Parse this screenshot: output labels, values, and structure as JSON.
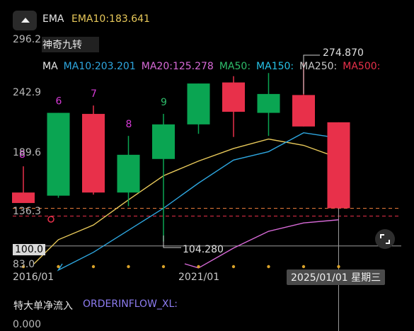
{
  "header": {
    "collapse_icon": "chevron-up-icon",
    "ema_label": "EMA",
    "ema10_text": "EMA10:183.641"
  },
  "colors": {
    "up": "#0aa552",
    "down": "#e8304a",
    "ema10": "#e8c95a",
    "ma10": "#2ea7e0",
    "ma20": "#d86ad8",
    "ma50": "#2ebd6b",
    "ma150": "#27c2e6",
    "ma250": "#c8c8c8",
    "ma500": "#e8304a",
    "td_up": "#d63ad6",
    "td_down": "#2ebd6b",
    "orderflow": "#8d7cf0",
    "ref_line": "#e87a3a"
  },
  "indicator_panel": {
    "nine_turn_label": "神奇九转",
    "ma_row": [
      {
        "text": "MA",
        "color": "#e6e6e6"
      },
      {
        "text": "MA10:203.201",
        "color": "#2ea7e0"
      },
      {
        "text": "MA20:125.278",
        "color": "#d86ad8"
      },
      {
        "text": "MA50:",
        "color": "#2ebd6b"
      },
      {
        "text": "MA150:",
        "color": "#27c2e6"
      },
      {
        "text": "MA250:",
        "color": "#c8c8c8"
      },
      {
        "text": "MA500:",
        "color": "#e8304a"
      }
    ]
  },
  "y_axis": {
    "labels": [
      "296.2",
      "242.9",
      "189.6",
      "136.3",
      "83.0"
    ],
    "current_price_tag": "100.0",
    "low_label": "104.280",
    "high_label": "274.870"
  },
  "x_axis": {
    "labels": [
      "2016/01",
      "2021/01"
    ],
    "crosshair_date": "2025/01/01 星期三"
  },
  "chart_data": {
    "type": "candlestick",
    "yrange": [
      83.0,
      296.2
    ],
    "candles": [
      {
        "open": 151,
        "close": 141,
        "high": 176,
        "low": 141,
        "td": "8",
        "td_color": "#d63ad6"
      },
      {
        "open": 148,
        "close": 227,
        "high": 227,
        "low": 146,
        "td": "6",
        "td_color": "#d63ad6"
      },
      {
        "open": 226,
        "close": 151,
        "high": 234,
        "low": 149,
        "td": "7",
        "td_color": "#d63ad6"
      },
      {
        "open": 151,
        "close": 187,
        "high": 205,
        "low": 138,
        "td": "8",
        "td_color": "#d63ad6"
      },
      {
        "open": 183,
        "close": 216,
        "high": 226,
        "low": 104.28,
        "td": "9",
        "td_color": "#2ebd6b"
      },
      {
        "open": 216,
        "close": 255,
        "high": 255,
        "low": 207,
        "td": "",
        "td_color": ""
      },
      {
        "open": 256,
        "close": 228,
        "high": 262,
        "low": 204,
        "td": "",
        "td_color": ""
      },
      {
        "open": 227,
        "close": 245,
        "high": 265,
        "low": 205,
        "td": "",
        "td_color": ""
      },
      {
        "open": 244,
        "close": 214,
        "high": 274.87,
        "low": 214,
        "td": "",
        "td_color": ""
      },
      {
        "open": 218,
        "close": 136,
        "high": 218,
        "low": 136,
        "td": "",
        "td_color": ""
      }
    ],
    "ema10": [
      null,
      106,
      120,
      144,
      167,
      181,
      193,
      202,
      196,
      184
    ],
    "ma10": [
      null,
      77,
      94,
      115,
      136,
      160,
      182,
      190,
      208,
      203
    ],
    "ma20": [
      null,
      null,
      null,
      null,
      null,
      79,
      98,
      114,
      122,
      125
    ]
  },
  "flow_panel": {
    "title": "特大单净流入",
    "indicator": "ORDERINFLOW_XL:",
    "zero_label": "0.000"
  },
  "fullscreen_icon": "fullscreen-corners-icon"
}
